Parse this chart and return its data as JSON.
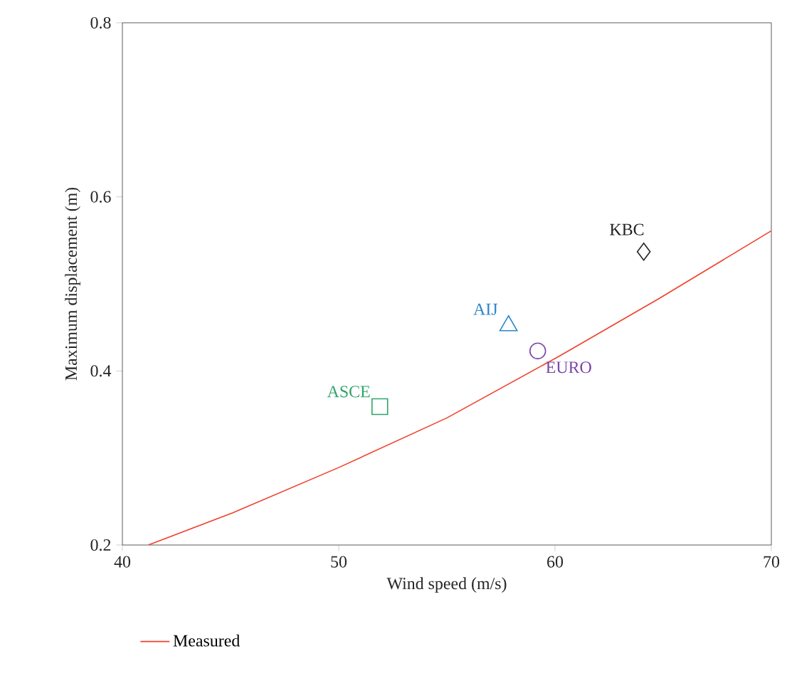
{
  "chart_data": {
    "type": "scatter",
    "xlabel": "Wind speed (m/s)",
    "ylabel": "Maximum displacement (m)",
    "xlim": [
      40,
      70
    ],
    "ylim": [
      0.2,
      0.8
    ],
    "xticks": [
      40,
      50,
      60,
      70
    ],
    "yticks": [
      0.2,
      0.4,
      0.6,
      0.8
    ],
    "grid": false,
    "legend": "bottom",
    "series": [
      {
        "name": "Measured",
        "type": "line",
        "color": "#f0402a",
        "marker": "none",
        "line_style": "solid",
        "x": [
          41.2,
          45.1,
          50,
          55.0,
          60.2,
          64.8,
          70
        ],
        "values": [
          0.2,
          0.237,
          0.289,
          0.346,
          0.417,
          0.483,
          0.561
        ]
      },
      {
        "name": "ASCE",
        "color": "#2ea56a",
        "marker": "square",
        "x": [
          51.9
        ],
        "values": [
          0.359
        ]
      },
      {
        "name": "AIJ",
        "color": "#2a86c8",
        "marker": "triangle",
        "x": [
          57.85
        ],
        "values": [
          0.452
        ]
      },
      {
        "name": "EURO",
        "color": "#7a45a8",
        "marker": "circle",
        "x": [
          59.2
        ],
        "values": [
          0.423
        ]
      },
      {
        "name": "KBC",
        "color": "#222222",
        "marker": "diamond",
        "x": [
          64.1
        ],
        "values": [
          0.537
        ]
      }
    ]
  }
}
